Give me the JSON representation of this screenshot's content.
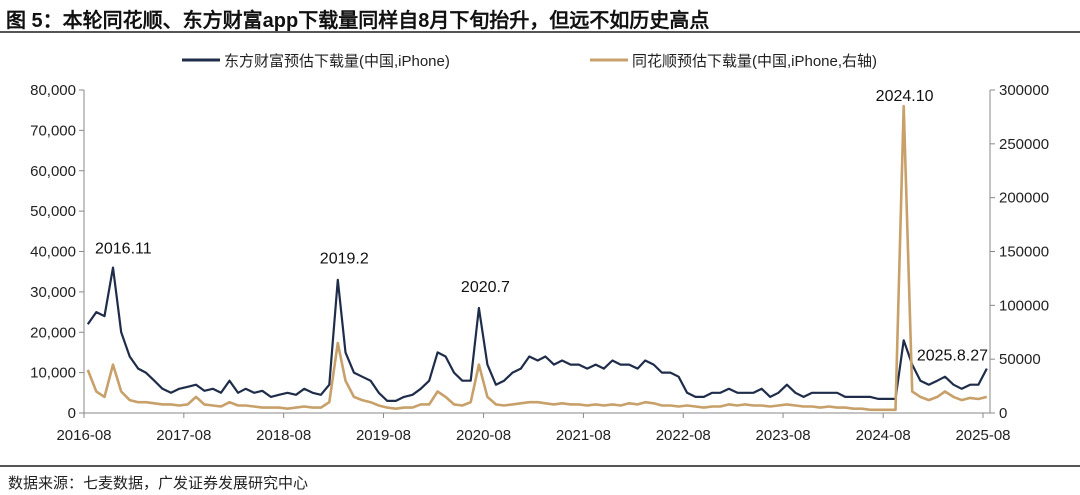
{
  "title": "图 5：本轮同花顺、东方财富app下载量同样自8月下旬抬升，但远不如历史高点",
  "source": "数据来源：七麦数据，广发证券发展研究中心",
  "chart_data": {
    "type": "line",
    "title": "",
    "xlabel": "",
    "ylabel": "",
    "legend_position": "top",
    "grid": false,
    "x": [
      "2016-08",
      "2016-09",
      "2016-10",
      "2016-11",
      "2016-12",
      "2017-01",
      "2017-02",
      "2017-03",
      "2017-04",
      "2017-05",
      "2017-06",
      "2017-07",
      "2017-08",
      "2017-09",
      "2017-10",
      "2017-11",
      "2017-12",
      "2018-01",
      "2018-02",
      "2018-03",
      "2018-04",
      "2018-05",
      "2018-06",
      "2018-07",
      "2018-08",
      "2018-09",
      "2018-10",
      "2018-11",
      "2018-12",
      "2019-01",
      "2019-02",
      "2019-03",
      "2019-04",
      "2019-05",
      "2019-06",
      "2019-07",
      "2019-08",
      "2019-09",
      "2019-10",
      "2019-11",
      "2019-12",
      "2020-01",
      "2020-02",
      "2020-03",
      "2020-04",
      "2020-05",
      "2020-06",
      "2020-07",
      "2020-08",
      "2020-09",
      "2020-10",
      "2020-11",
      "2020-12",
      "2021-01",
      "2021-02",
      "2021-03",
      "2021-04",
      "2021-05",
      "2021-06",
      "2021-07",
      "2021-08",
      "2021-09",
      "2021-10",
      "2021-11",
      "2021-12",
      "2022-01",
      "2022-02",
      "2022-03",
      "2022-04",
      "2022-05",
      "2022-06",
      "2022-07",
      "2022-08",
      "2022-09",
      "2022-10",
      "2022-11",
      "2022-12",
      "2023-01",
      "2023-02",
      "2023-03",
      "2023-04",
      "2023-05",
      "2023-06",
      "2023-07",
      "2023-08",
      "2023-09",
      "2023-10",
      "2023-11",
      "2023-12",
      "2024-01",
      "2024-02",
      "2024-03",
      "2024-04",
      "2024-05",
      "2024-06",
      "2024-07",
      "2024-08",
      "2024-09",
      "2024-10",
      "2024-11",
      "2024-12",
      "2025-01",
      "2025-02",
      "2025-03",
      "2025-04",
      "2025-05",
      "2025-06",
      "2025-07",
      "2025-08"
    ],
    "x_ticks": [
      "2016-08",
      "2017-08",
      "2018-08",
      "2019-08",
      "2020-08",
      "2021-08",
      "2022-08",
      "2023-08",
      "2024-08",
      "2025-08"
    ],
    "y_left": {
      "range": [
        0,
        80000
      ],
      "ticks": [
        "0",
        "10,000",
        "20,000",
        "30,000",
        "40,000",
        "50,000",
        "60,000",
        "70,000",
        "80,000"
      ]
    },
    "y_right": {
      "range": [
        0,
        300000
      ],
      "ticks": [
        "0",
        "50000",
        "100000",
        "150000",
        "200000",
        "250000",
        "300000"
      ]
    },
    "series": [
      {
        "name": "东方财富预估下载量(中国,iPhone)",
        "axis": "left",
        "color": "#1f2d4a",
        "values": [
          22000,
          25000,
          24000,
          36000,
          20000,
          14000,
          11000,
          10000,
          8000,
          6000,
          5000,
          6000,
          6500,
          7000,
          5500,
          6000,
          5000,
          8000,
          5000,
          6000,
          5000,
          5500,
          4000,
          4500,
          5000,
          4500,
          6000,
          5000,
          4500,
          7000,
          33000,
          15000,
          10000,
          9000,
          8000,
          5000,
          3000,
          3000,
          4000,
          4500,
          6000,
          8000,
          15000,
          14000,
          10000,
          8000,
          8000,
          26000,
          12000,
          7000,
          8000,
          10000,
          11000,
          14000,
          13000,
          14000,
          12000,
          13000,
          12000,
          12000,
          11000,
          12000,
          11000,
          13000,
          12000,
          12000,
          11000,
          13000,
          12000,
          10000,
          10000,
          9000,
          5000,
          4000,
          4000,
          5000,
          5000,
          6000,
          5000,
          5000,
          5000,
          6000,
          4000,
          5000,
          7000,
          5000,
          4000,
          5000,
          5000,
          5000,
          5000,
          4000,
          4000,
          4000,
          4000,
          3500,
          3500,
          3500,
          18000,
          12000,
          8000,
          7000,
          8000,
          9000,
          7000,
          6000,
          7000,
          7000,
          11000
        ]
      },
      {
        "name": "同花顺预估下载量(中国,iPhone,右轴)",
        "axis": "right",
        "color": "#c8a06a",
        "values": [
          40000,
          20000,
          15000,
          45000,
          20000,
          12000,
          10000,
          10000,
          9000,
          8000,
          8000,
          7000,
          8000,
          15000,
          8000,
          7000,
          6000,
          10000,
          7000,
          7000,
          6000,
          5000,
          5000,
          5000,
          4000,
          5000,
          6000,
          5000,
          5000,
          10000,
          65000,
          30000,
          15000,
          12000,
          10000,
          7000,
          5000,
          4000,
          5000,
          5000,
          8000,
          8000,
          20000,
          15000,
          8000,
          7000,
          10000,
          45000,
          15000,
          8000,
          7000,
          8000,
          9000,
          10000,
          10000,
          9000,
          8000,
          9000,
          8000,
          8000,
          7000,
          8000,
          7000,
          8000,
          7000,
          9000,
          8000,
          10000,
          9000,
          7000,
          7000,
          6000,
          7000,
          6000,
          5000,
          6000,
          6000,
          8000,
          7000,
          8000,
          7000,
          7000,
          6000,
          7000,
          8000,
          7000,
          6000,
          6000,
          5000,
          6000,
          5000,
          5000,
          4000,
          4000,
          3000,
          3000,
          3000,
          3000,
          285000,
          20000,
          15000,
          12000,
          15000,
          20000,
          15000,
          12000,
          14000,
          13000,
          15000
        ]
      }
    ],
    "annotations": [
      {
        "text": "2016.11",
        "x": "2016-11",
        "axis": "left",
        "y": 37500
      },
      {
        "text": "2019.2",
        "x": "2019-02",
        "axis": "left",
        "y": 35000
      },
      {
        "text": "2020.7",
        "x": "2020-07",
        "axis": "left",
        "y": 28000
      },
      {
        "text": "2024.10",
        "x": "2024-10",
        "axis": "right",
        "y": 285000
      },
      {
        "text": "2025.8.27",
        "x": "2025-08",
        "axis": "left",
        "y": 13000
      }
    ]
  }
}
